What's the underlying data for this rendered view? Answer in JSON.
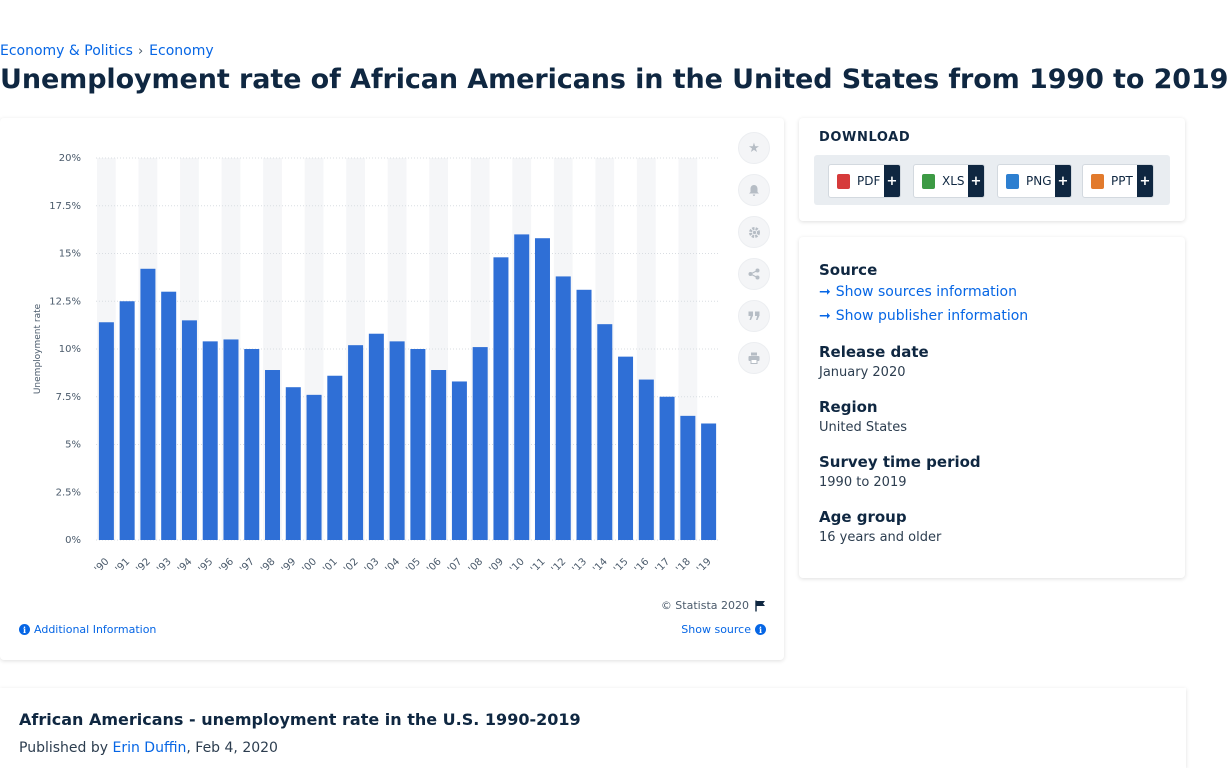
{
  "breadcrumb": {
    "item1": "Economy & Politics",
    "separator": "›",
    "item2": "Economy"
  },
  "page_title": "Unemployment rate of African Americans in the United States from 1990 to 2019",
  "toolbar": {
    "icons": [
      "star-icon",
      "bell-icon",
      "gear-icon",
      "share-icon",
      "quote-icon",
      "print-icon"
    ]
  },
  "chart_footer": {
    "copyright": "© Statista 2020",
    "additional_info": "Additional Information",
    "show_source": "Show source"
  },
  "download": {
    "title": "DOWNLOAD",
    "buttons": [
      {
        "label": "PDF",
        "color": "#d63b3b"
      },
      {
        "label": "XLS",
        "color": "#3c9a44"
      },
      {
        "label": "PNG",
        "color": "#2d7fd0"
      },
      {
        "label": "PPT",
        "color": "#e27a2c"
      }
    ],
    "plus": "+"
  },
  "meta": {
    "source_heading": "Source",
    "sources_link": "Show sources information",
    "publisher_link": "Show publisher information",
    "release_heading": "Release date",
    "release_value": "January 2020",
    "region_heading": "Region",
    "region_value": "United States",
    "period_heading": "Survey time period",
    "period_value": "1990 to 2019",
    "age_heading": "Age group",
    "age_value": "16 years and older"
  },
  "bottom": {
    "title": "African Americans - unemployment rate in the U.S. 1990-2019",
    "published_prefix": "Published by ",
    "author": "Erin Duffin",
    "date": ", Feb 4, 2020"
  },
  "chart_data": {
    "type": "bar",
    "categories": [
      "'90",
      "'91",
      "'92",
      "'93",
      "'94",
      "'95",
      "'96",
      "'97",
      "'98",
      "'99",
      "'00",
      "'01",
      "'02",
      "'03",
      "'04",
      "'05",
      "'06",
      "'07",
      "'08",
      "'09",
      "'10",
      "'11",
      "'12",
      "'13",
      "'14",
      "'15",
      "'16",
      "'17",
      "'18",
      "'19"
    ],
    "values": [
      11.4,
      12.5,
      14.2,
      13.0,
      11.5,
      10.4,
      10.5,
      10.0,
      8.9,
      8.0,
      7.6,
      8.6,
      10.2,
      10.8,
      10.4,
      10.0,
      8.9,
      8.3,
      10.1,
      14.8,
      16.0,
      15.8,
      13.8,
      13.1,
      11.3,
      9.6,
      8.4,
      7.5,
      6.5,
      6.1
    ],
    "ylabel": "Unemployment rate",
    "xlabel": "",
    "ylim": [
      0,
      20
    ],
    "yticks": [
      "0%",
      "2.5%",
      "5%",
      "7.5%",
      "10%",
      "12.5%",
      "15%",
      "17.5%",
      "20%"
    ],
    "bar_color": "#2f6fd6",
    "stripe_color": "#f5f6f8",
    "grid": true
  }
}
